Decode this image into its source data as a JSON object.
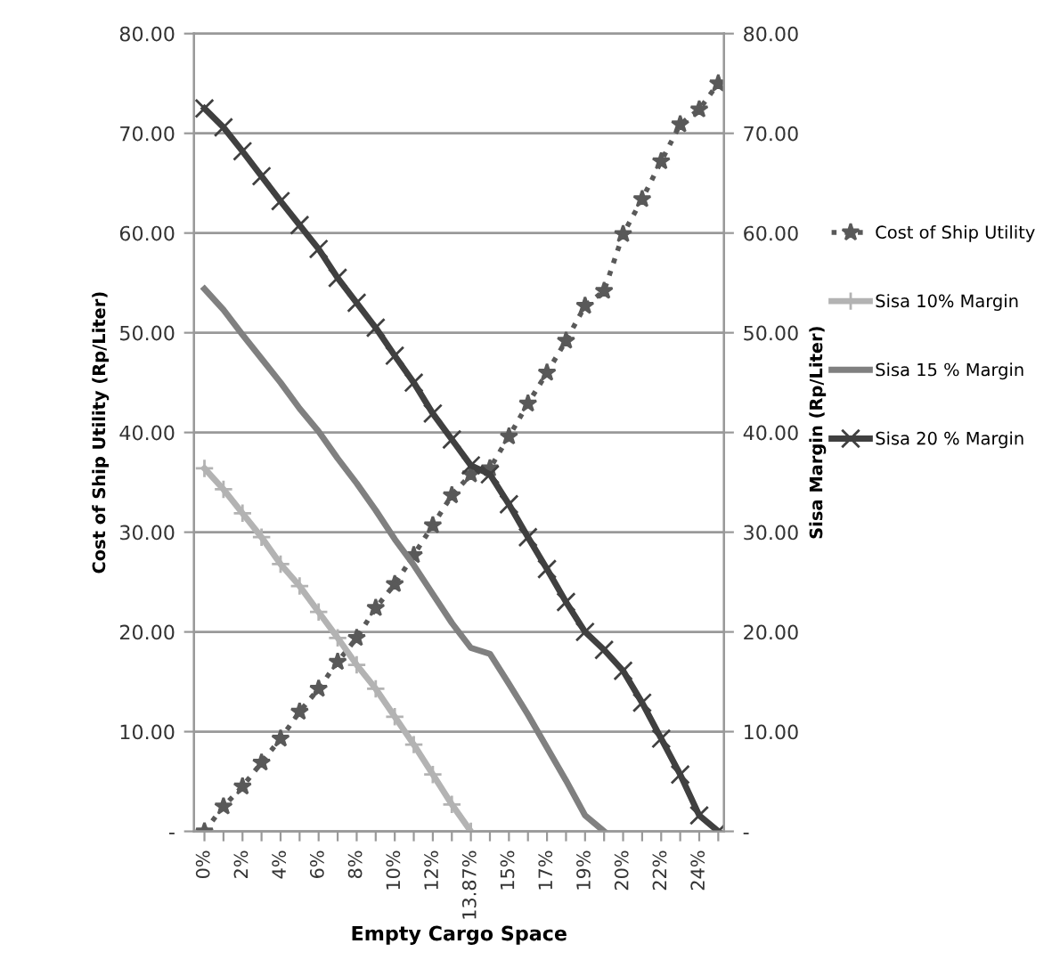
{
  "chart_data": {
    "type": "line",
    "xlabel": "Empty Cargo Space",
    "ylabel": "Cost of Ship Utility (Rp/Liter)",
    "y2label": "Sisa Margin (Rp/Liter)",
    "categories": [
      "0%",
      null,
      "2%",
      null,
      "4%",
      null,
      "6%",
      null,
      "8%",
      null,
      "10%",
      null,
      "12%",
      null,
      "13.87%",
      null,
      "15%",
      null,
      "17%",
      null,
      "19%",
      null,
      "20%",
      null,
      "22%",
      null,
      "24%",
      null
    ],
    "series": [
      {
        "name": "Cost of Ship Utility",
        "color": "#595959",
        "line_style": "dotted",
        "marker": "star",
        "values": [
          0,
          2.5,
          4.5,
          6.9,
          9.3,
          12.0,
          14.3,
          17.0,
          19.4,
          22.4,
          24.8,
          27.7,
          30.7,
          33.7,
          35.8,
          36.4,
          39.6,
          42.9,
          46.0,
          49.2,
          52.7,
          54.2,
          59.9,
          63.4,
          67.2,
          70.9,
          72.4,
          75.0
        ]
      },
      {
        "name": "Sisa 10% Margin",
        "color": "#b3b3b3",
        "line_style": "solid",
        "marker": "plus",
        "axis": "y2",
        "values": [
          36.4,
          34.3,
          31.9,
          29.5,
          26.8,
          24.6,
          22.0,
          19.4,
          16.7,
          14.3,
          11.5,
          8.7,
          5.7,
          2.7,
          0,
          null,
          null,
          null,
          null,
          null,
          null,
          null,
          null,
          null,
          null,
          null,
          null,
          null
        ]
      },
      {
        "name": "Sisa 15 % Margin",
        "color": "#808080",
        "line_style": "solid",
        "marker": "none",
        "axis": "y2",
        "values": [
          54.4,
          52.3,
          49.8,
          47.4,
          45.0,
          42.4,
          40.1,
          37.4,
          34.9,
          32.2,
          29.3,
          26.7,
          23.8,
          20.9,
          18.4,
          17.8,
          14.8,
          11.7,
          8.4,
          5.1,
          1.6,
          0,
          null,
          null,
          null,
          null,
          null,
          null
        ]
      },
      {
        "name": "Sisa 20 % Margin",
        "color": "#404040",
        "line_style": "solid",
        "marker": "cross",
        "axis": "y2",
        "values": [
          72.5,
          70.6,
          68.2,
          65.7,
          63.2,
          60.8,
          58.4,
          55.5,
          53.0,
          50.5,
          47.7,
          45.0,
          41.9,
          39.3,
          36.7,
          35.8,
          32.8,
          29.5,
          26.3,
          23.0,
          20.0,
          18.2,
          16.1,
          12.9,
          9.3,
          5.7,
          1.6,
          0
        ]
      }
    ],
    "ylim": [
      0,
      80
    ],
    "y2lim": [
      0,
      80
    ],
    "yticks": [
      {
        "value": 0,
        "label": "-"
      },
      {
        "value": 10,
        "label": "10.00"
      },
      {
        "value": 20,
        "label": "20.00"
      },
      {
        "value": 30,
        "label": "30.00"
      },
      {
        "value": 40,
        "label": "40.00"
      },
      {
        "value": 50,
        "label": "50.00"
      },
      {
        "value": 60,
        "label": "60.00"
      },
      {
        "value": 70,
        "label": "70.00"
      },
      {
        "value": 80,
        "label": "80.00"
      }
    ],
    "y2ticks": [
      {
        "value": 0,
        "label": "-"
      },
      {
        "value": 10,
        "label": "10.00"
      },
      {
        "value": 20,
        "label": "20.00"
      },
      {
        "value": 30,
        "label": "30.00"
      },
      {
        "value": 40,
        "label": "40.00"
      },
      {
        "value": 50,
        "label": "50.00"
      },
      {
        "value": 60,
        "label": "60.00"
      },
      {
        "value": 70,
        "label": "70.00"
      },
      {
        "value": 80,
        "label": "80.00"
      }
    ],
    "grid": "y",
    "legend": "right"
  }
}
